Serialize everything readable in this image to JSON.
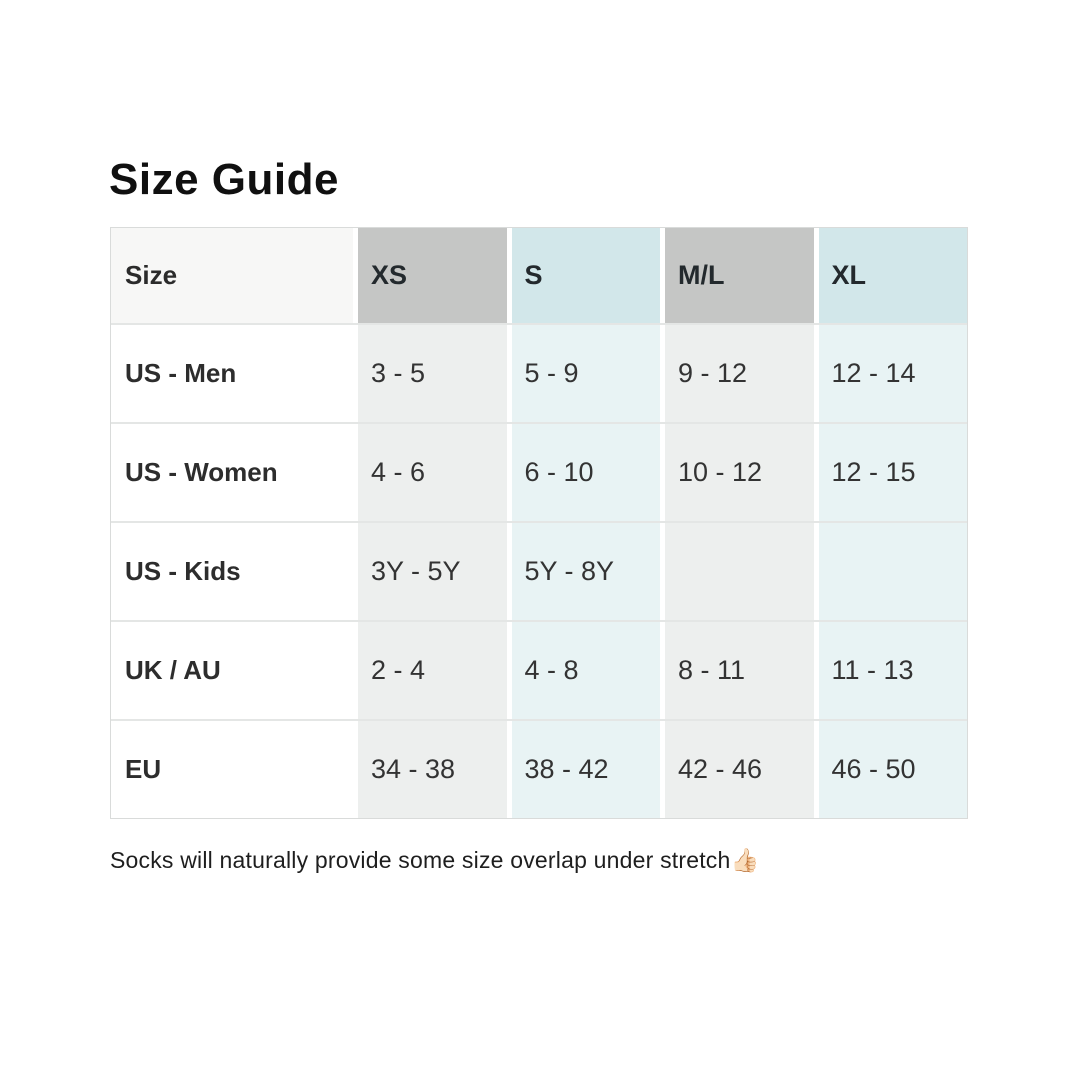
{
  "page": {
    "title": "Size Guide",
    "footnote": "Socks will naturally provide some size overlap under stretch",
    "footnote_emoji": "👍🏻"
  },
  "table": {
    "columns": [
      "Size",
      "XS",
      "S",
      "M/L",
      "XL"
    ],
    "rows": [
      {
        "label": "US - Men",
        "values": [
          "3 - 5",
          "5 - 9",
          "9 - 12",
          "12 - 14"
        ]
      },
      {
        "label": "US - Women",
        "values": [
          "4 - 6",
          "6 - 10",
          "10 - 12",
          "12 - 15"
        ]
      },
      {
        "label": "US - Kids",
        "values": [
          "3Y - 5Y",
          "5Y - 8Y",
          "",
          ""
        ]
      },
      {
        "label": "UK / AU",
        "values": [
          "2 - 4",
          "4 - 8",
          "8 - 11",
          "11 - 13"
        ]
      },
      {
        "label": "EU",
        "values": [
          "34 - 38",
          "38 - 42",
          "42 - 46",
          "46 - 50"
        ]
      }
    ],
    "colors": {
      "header_gray": "#c5c6c5",
      "header_blue": "#d2e7ea",
      "body_gray": "#edefee",
      "body_blue": "#e8f3f4",
      "row_border": "#e4e6e5"
    }
  }
}
